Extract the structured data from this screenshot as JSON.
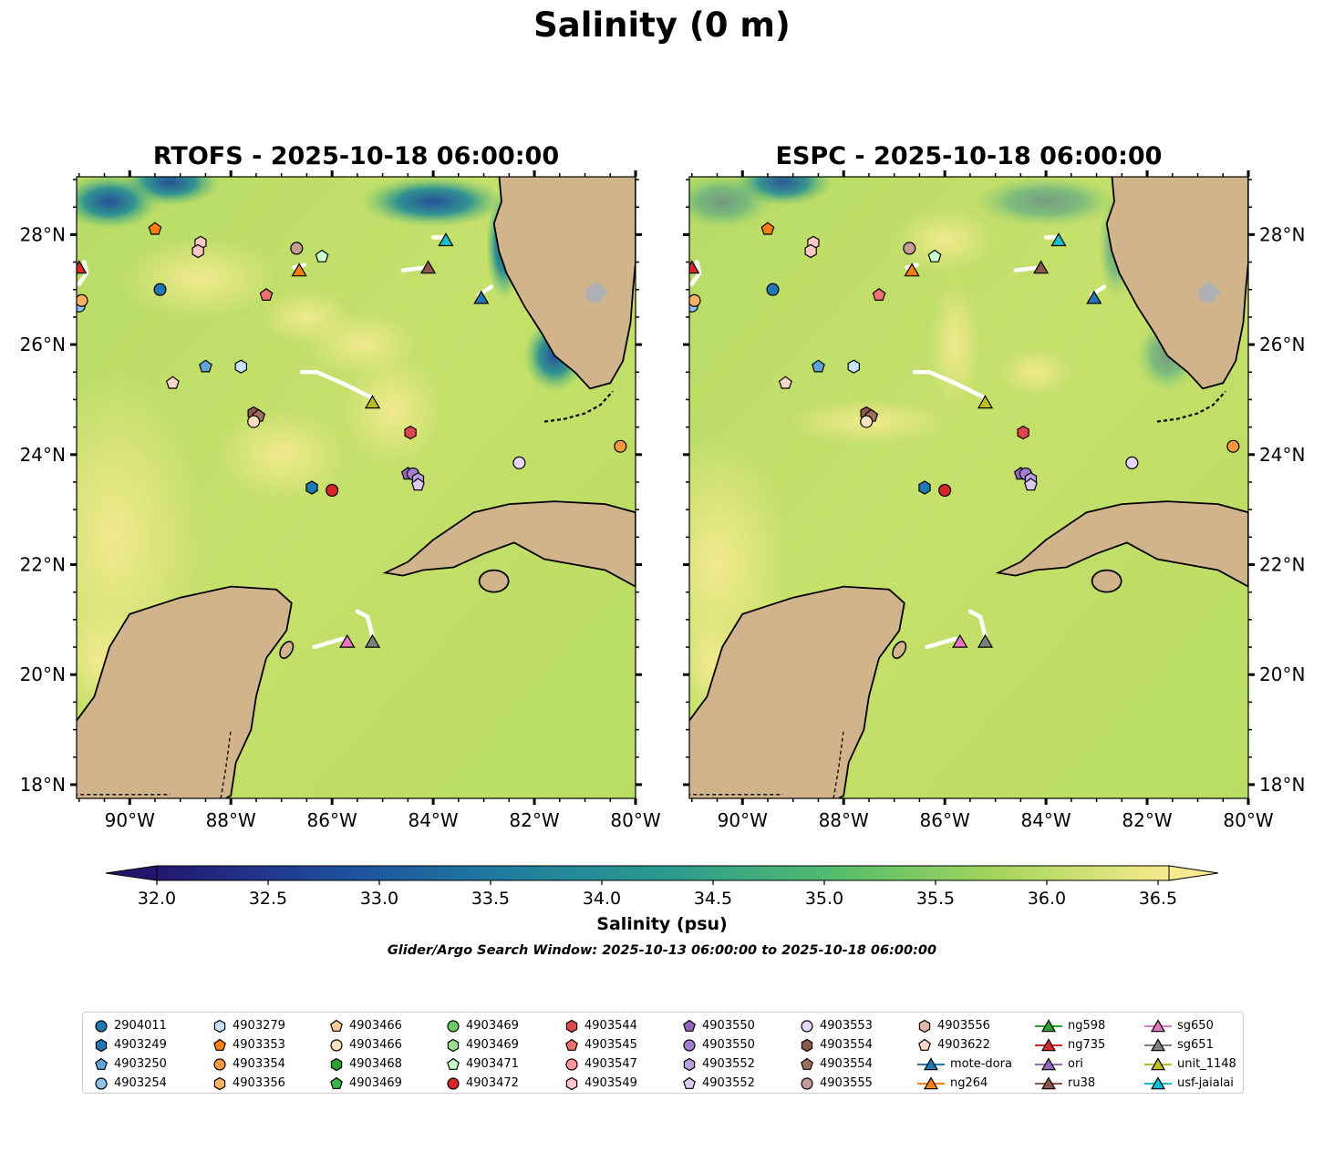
{
  "figure_title": "Salinity (0 m)",
  "panels": [
    {
      "id": "rtofs",
      "title": "RTOFS - 2025-10-18 06:00:00"
    },
    {
      "id": "espc",
      "title": "ESPC - 2025-10-18 06:00:00"
    }
  ],
  "axes": {
    "lon_ticks": [
      "90°W",
      "88°W",
      "86°W",
      "84°W",
      "82°W",
      "80°W"
    ],
    "lat_ticks": [
      "28°N",
      "26°N",
      "24°N",
      "22°N",
      "20°N",
      "18°N"
    ]
  },
  "colorbar": {
    "label": "Salinity (psu)",
    "ticks": [
      "32.0",
      "32.5",
      "33.0",
      "33.5",
      "34.0",
      "34.5",
      "35.0",
      "35.5",
      "36.0",
      "36.5"
    ],
    "vmin": 32.0,
    "vmax": 36.5,
    "colors": [
      "#24166e",
      "#1e4a9c",
      "#1f7aa0",
      "#2a9a8f",
      "#52bb6d",
      "#a6d65a",
      "#f7ea8f"
    ]
  },
  "search_window": "Glider/Argo Search Window: 2025-10-13 06:00:00 to 2025-10-18 06:00:00",
  "legend": [
    {
      "label": "2904011",
      "marker": "circle",
      "color": "#1f77b4"
    },
    {
      "label": "4903249",
      "marker": "hexagon",
      "color": "#1f77b4"
    },
    {
      "label": "4903250",
      "marker": "pentagon",
      "color": "#5fa3d8"
    },
    {
      "label": "4903254",
      "marker": "circle",
      "color": "#8ec4ea"
    },
    {
      "label": "4903279",
      "marker": "hexagon",
      "color": "#c6e4f7"
    },
    {
      "label": "4903353",
      "marker": "pentagon",
      "color": "#ff7f0e"
    },
    {
      "label": "4903354",
      "marker": "circle",
      "color": "#ff9a3c"
    },
    {
      "label": "4903356",
      "marker": "hexagon",
      "color": "#ffb266"
    },
    {
      "label": "4903466",
      "marker": "pentagon",
      "color": "#ffcc99"
    },
    {
      "label": "4903466",
      "marker": "circle",
      "color": "#ffe0c0"
    },
    {
      "label": "4903468",
      "marker": "hexagon",
      "color": "#2ca02c"
    },
    {
      "label": "4903469",
      "marker": "pentagon",
      "color": "#3cb44b"
    },
    {
      "label": "4903469",
      "marker": "circle",
      "color": "#66cc66"
    },
    {
      "label": "4903469",
      "marker": "hexagon",
      "color": "#98df8a"
    },
    {
      "label": "4903471",
      "marker": "pentagon",
      "color": "#ccffcc"
    },
    {
      "label": "4903472",
      "marker": "circle",
      "color": "#d62728"
    },
    {
      "label": "4903544",
      "marker": "hexagon",
      "color": "#e0474c"
    },
    {
      "label": "4903545",
      "marker": "pentagon",
      "color": "#f07070"
    },
    {
      "label": "4903547",
      "marker": "circle",
      "color": "#ff9896"
    },
    {
      "label": "4903549",
      "marker": "hexagon",
      "color": "#ffc6c6"
    },
    {
      "label": "4903550",
      "marker": "pentagon",
      "color": "#9467bd"
    },
    {
      "label": "4903550",
      "marker": "circle",
      "color": "#a47fcf"
    },
    {
      "label": "4903552",
      "marker": "hexagon",
      "color": "#bb9ee0"
    },
    {
      "label": "4903552",
      "marker": "pentagon",
      "color": "#dcc8f0"
    },
    {
      "label": "4903553",
      "marker": "circle",
      "color": "#e6d6f7"
    },
    {
      "label": "4903554",
      "marker": "hexagon",
      "color": "#8c564b"
    },
    {
      "label": "4903554",
      "marker": "pentagon",
      "color": "#a0705f"
    },
    {
      "label": "4903555",
      "marker": "circle",
      "color": "#c49c94"
    },
    {
      "label": "4903556",
      "marker": "hexagon",
      "color": "#e0b8a8"
    },
    {
      "label": "4903622",
      "marker": "pentagon",
      "color": "#f7d6c6"
    },
    {
      "label": "mote-dora",
      "marker": "triangle-line",
      "color": "#1f77b4"
    },
    {
      "label": "ng264",
      "marker": "triangle-line",
      "color": "#ff7f0e"
    },
    {
      "label": "ng598",
      "marker": "triangle-line",
      "color": "#2ca02c"
    },
    {
      "label": "ng735",
      "marker": "triangle-line",
      "color": "#d62728"
    },
    {
      "label": "ori",
      "marker": "triangle-line",
      "color": "#9467bd"
    },
    {
      "label": "ru38",
      "marker": "triangle-line",
      "color": "#8c564b"
    },
    {
      "label": "sg650",
      "marker": "triangle-line",
      "color": "#e377c2"
    },
    {
      "label": "sg651",
      "marker": "triangle-line",
      "color": "#7f7f7f"
    },
    {
      "label": "unit_1148",
      "marker": "triangle-line",
      "color": "#bcbd22"
    },
    {
      "label": "usf-jaialai",
      "marker": "triangle-line",
      "color": "#17becf"
    }
  ],
  "observations": [
    {
      "marker": "circle",
      "color": "#1f77b4",
      "lon": -89.4,
      "lat": 27.0
    },
    {
      "marker": "pentagon",
      "color": "#ff7f0e",
      "lon": -89.5,
      "lat": 28.1
    },
    {
      "marker": "hexagon",
      "color": "#ffc6c6",
      "lon": -88.6,
      "lat": 27.85
    },
    {
      "marker": "hexagon",
      "color": "#ffc6c6",
      "lon": -88.65,
      "lat": 27.7
    },
    {
      "marker": "circle",
      "color": "#c49c94",
      "lon": -86.7,
      "lat": 27.75
    },
    {
      "marker": "pentagon",
      "color": "#ccffcc",
      "lon": -86.2,
      "lat": 27.6
    },
    {
      "marker": "pentagon",
      "color": "#f07070",
      "lon": -87.3,
      "lat": 26.9
    },
    {
      "marker": "pentagon",
      "color": "#5fa3d8",
      "lon": -88.5,
      "lat": 25.6
    },
    {
      "marker": "hexagon",
      "color": "#c6e4f7",
      "lon": -87.8,
      "lat": 25.6
    },
    {
      "marker": "pentagon",
      "color": "#f7d6c6",
      "lon": -89.15,
      "lat": 25.3
    },
    {
      "marker": "hexagon",
      "color": "#8c564b",
      "lon": -87.55,
      "lat": 24.75
    },
    {
      "marker": "pentagon",
      "color": "#a0705f",
      "lon": -87.45,
      "lat": 24.7
    },
    {
      "marker": "circle",
      "color": "#ffe0c0",
      "lon": -87.55,
      "lat": 24.6
    },
    {
      "marker": "hexagon",
      "color": "#e0474c",
      "lon": -84.45,
      "lat": 24.4
    },
    {
      "marker": "hexagon",
      "color": "#1f77b4",
      "lon": -86.4,
      "lat": 23.4
    },
    {
      "marker": "circle",
      "color": "#d62728",
      "lon": -86.0,
      "lat": 23.35
    },
    {
      "marker": "pentagon",
      "color": "#9467bd",
      "lon": -84.5,
      "lat": 23.65
    },
    {
      "marker": "circle",
      "color": "#a47fcf",
      "lon": -84.4,
      "lat": 23.65
    },
    {
      "marker": "hexagon",
      "color": "#bb9ee0",
      "lon": -84.3,
      "lat": 23.55
    },
    {
      "marker": "pentagon",
      "color": "#dcc8f0",
      "lon": -84.3,
      "lat": 23.45
    },
    {
      "marker": "circle",
      "color": "#e6d6f7",
      "lon": -82.3,
      "lat": 23.85
    },
    {
      "marker": "circle",
      "color": "#ff9a3c",
      "lon": -80.3,
      "lat": 24.15
    },
    {
      "marker": "circle",
      "color": "#8ec4ea",
      "lon": -91.0,
      "lat": 26.7
    },
    {
      "marker": "circle",
      "color": "#ffb266",
      "lon": -90.95,
      "lat": 26.8
    },
    {
      "marker": "triangle",
      "color": "#d62728",
      "lon": -91.0,
      "lat": 27.4
    },
    {
      "marker": "triangle",
      "color": "#ff7f0e",
      "lon": -86.65,
      "lat": 27.35
    },
    {
      "marker": "triangle",
      "color": "#17becf",
      "lon": -83.75,
      "lat": 27.9
    },
    {
      "marker": "triangle",
      "color": "#8c564b",
      "lon": -84.1,
      "lat": 27.4
    },
    {
      "marker": "triangle",
      "color": "#1f77b4",
      "lon": -83.05,
      "lat": 26.85
    },
    {
      "marker": "triangle",
      "color": "#bcbd22",
      "lon": -85.2,
      "lat": 24.95
    },
    {
      "marker": "triangle",
      "color": "#e377c2",
      "lon": -85.7,
      "lat": 20.6
    },
    {
      "marker": "triangle",
      "color": "#7f7f7f",
      "lon": -85.2,
      "lat": 20.6
    }
  ],
  "tracks": [
    [
      [
        -91.0,
        27.1
      ],
      [
        -90.85,
        27.3
      ],
      [
        -90.9,
        27.5
      ]
    ],
    [
      [
        -86.75,
        27.4
      ],
      [
        -86.55,
        27.45
      ]
    ],
    [
      [
        -84.6,
        27.35
      ],
      [
        -84.15,
        27.4
      ]
    ],
    [
      [
        -84.0,
        27.95
      ],
      [
        -83.8,
        27.95
      ]
    ],
    [
      [
        -83.1,
        26.9
      ],
      [
        -82.85,
        27.05
      ]
    ],
    [
      [
        -86.6,
        25.5
      ],
      [
        -86.3,
        25.5
      ],
      [
        -85.8,
        25.3
      ],
      [
        -85.25,
        25.05
      ]
    ],
    [
      [
        -86.35,
        20.5
      ],
      [
        -85.8,
        20.65
      ],
      [
        -85.75,
        20.62
      ]
    ],
    [
      [
        -85.5,
        21.15
      ],
      [
        -85.3,
        21.05
      ],
      [
        -85.2,
        20.7
      ]
    ]
  ]
}
